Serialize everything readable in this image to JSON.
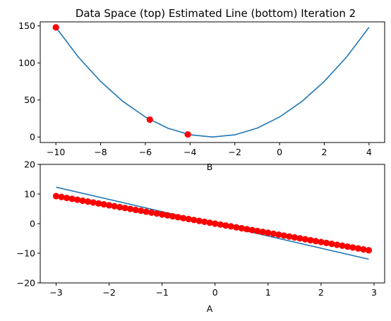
{
  "chart_data": [
    {
      "type": "line",
      "title": "Data Space (top) Estimated Line (bottom) Iteration 2",
      "xlabel": "B",
      "ylabel": "",
      "xlim": [
        -10.7,
        4.7
      ],
      "ylim": [
        -7.4,
        155.4
      ],
      "xticks": [
        -10,
        -8,
        -6,
        -4,
        -2,
        0,
        2,
        4
      ],
      "yticks": [
        0,
        50,
        100,
        150
      ],
      "grid": false,
      "line_color": "#1f77b4",
      "point_color": "#ff0000",
      "line": {
        "x": [
          -10,
          -9,
          -8,
          -7,
          -6,
          -5,
          -4,
          -3,
          -2,
          -1,
          0,
          1,
          2,
          3,
          4
        ],
        "y": [
          148,
          108,
          75,
          48,
          27,
          12,
          3,
          0,
          3,
          12,
          27,
          48,
          75,
          108,
          148
        ]
      },
      "points": {
        "x": [
          -10,
          -5.8,
          -4.1
        ],
        "y": [
          148,
          23.5,
          3.5
        ]
      }
    },
    {
      "type": "scatter",
      "title": "",
      "xlabel": "A",
      "ylabel": "",
      "xlim": [
        -3.3,
        3.2
      ],
      "ylim": [
        -20,
        20
      ],
      "xticks": [
        -3,
        -2,
        -1,
        0,
        1,
        2,
        3
      ],
      "yticks": [
        -20,
        -10,
        0,
        10,
        20
      ],
      "grid": false,
      "line_color": "#1f77b4",
      "point_color": "#ff0000",
      "line": {
        "x": [
          -3.0,
          2.9
        ],
        "y": [
          12.3,
          -12.0
        ]
      },
      "points": {
        "x_start": -3.0,
        "x_step": 0.1,
        "count": 60,
        "slope": -3.1,
        "intercept": 0.0
      }
    }
  ]
}
